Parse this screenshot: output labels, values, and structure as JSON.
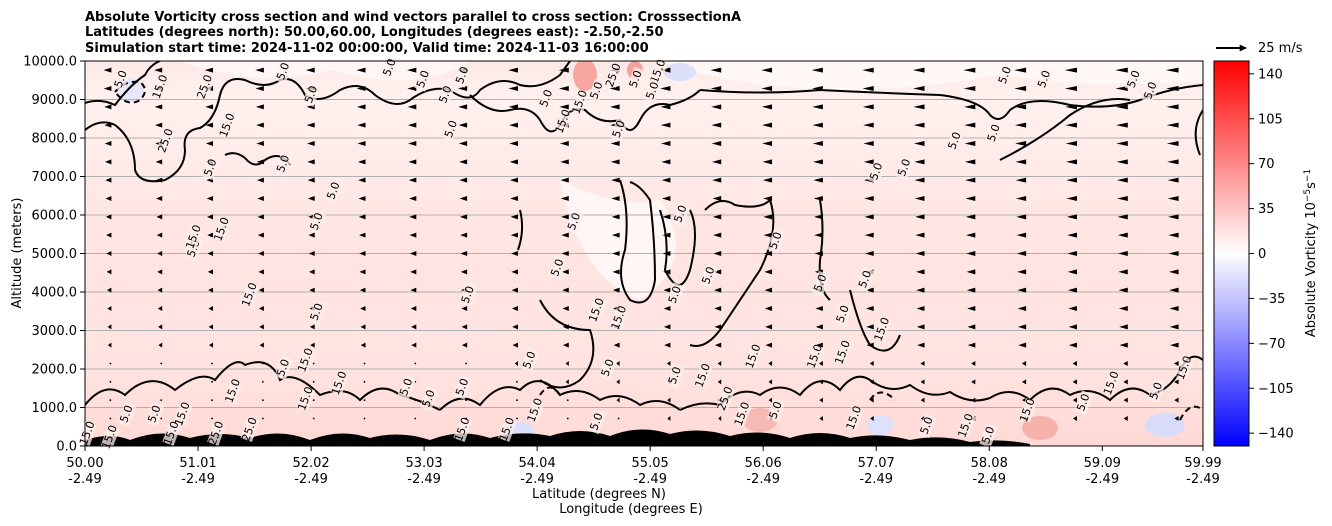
{
  "chart_data": {
    "type": "heatmap",
    "title_lines": [
      "Absolute Vorticity cross section and wind vectors parallel to cross section: CrosssectionA",
      "Latitudes (degrees north): 50.00,60.00, Longitudes (degrees east): -2.50,-2.50",
      "Simulation start time: 2024-11-02 00:00:00, Valid time: 2024-11-03 16:00:00"
    ],
    "ylabel": "Altitude (meters)",
    "xlabel_lines": [
      "Latitude (degrees N)",
      "Longitude (degrees E)"
    ],
    "ylim": [
      0,
      10000
    ],
    "y_ticks": [
      0,
      1000,
      2000,
      3000,
      4000,
      5000,
      6000,
      7000,
      8000,
      9000,
      10000
    ],
    "y_tick_labels": [
      "0.0",
      "1000.0",
      "2000.0",
      "3000.0",
      "4000.0",
      "5000.0",
      "6000.0",
      "7000.0",
      "8000.0",
      "9000.0",
      "10000.0"
    ],
    "x_ticks": [
      {
        "lat": "50.00",
        "lon": "-2.49"
      },
      {
        "lat": "51.01",
        "lon": "-2.49"
      },
      {
        "lat": "52.02",
        "lon": "-2.49"
      },
      {
        "lat": "53.03",
        "lon": "-2.49"
      },
      {
        "lat": "54.04",
        "lon": "-2.49"
      },
      {
        "lat": "55.05",
        "lon": "-2.49"
      },
      {
        "lat": "56.06",
        "lon": "-2.49"
      },
      {
        "lat": "57.07",
        "lon": "-2.49"
      },
      {
        "lat": "58.08",
        "lon": "-2.49"
      },
      {
        "lat": "59.09",
        "lon": "-2.49"
      },
      {
        "lat": "59.99",
        "lon": "-2.49"
      }
    ],
    "grid": "horizontal",
    "colorbar": {
      "label_main": "Absolute Vorticity 10",
      "label_exp1": "−5",
      "label_mid": "s",
      "label_exp2": "−1",
      "range": [
        -150,
        150
      ],
      "ticks": [
        140,
        105,
        70,
        35,
        0,
        -35,
        -70,
        -105,
        -140
      ],
      "tick_labels": [
        "140",
        "105",
        "70",
        "35",
        "0",
        "−35",
        "−70",
        "−105",
        "−140"
      ],
      "colormap": "bwr"
    },
    "quiver_key": {
      "label": "25 m/s",
      "value": 25
    },
    "contour_levels": [
      "5.0",
      "15.0",
      "25.0"
    ],
    "contour_labels": [
      {
        "text": "5.0",
        "lat": 50.35,
        "alt": 9500
      },
      {
        "text": "15.0",
        "lat": 50.7,
        "alt": 9300
      },
      {
        "text": "25.0",
        "lat": 51.1,
        "alt": 9300
      },
      {
        "text": "25.0",
        "lat": 50.75,
        "alt": 7900
      },
      {
        "text": "15.0",
        "lat": 51.3,
        "alt": 8300
      },
      {
        "text": "5.0",
        "lat": 51.15,
        "alt": 7200
      },
      {
        "text": "5.0",
        "lat": 51.8,
        "alt": 7300
      },
      {
        "text": "5.0",
        "lat": 51.8,
        "alt": 9700
      },
      {
        "text": "5.0",
        "lat": 52.05,
        "alt": 9100
      },
      {
        "text": "5.0",
        "lat": 52.25,
        "alt": 6600
      },
      {
        "text": "5.0",
        "lat": 52.75,
        "alt": 9800
      },
      {
        "text": "5.0",
        "lat": 53.05,
        "alt": 9500
      },
      {
        "text": "5.0",
        "lat": 53.25,
        "alt": 9100
      },
      {
        "text": "5.0",
        "lat": 53.4,
        "alt": 9600
      },
      {
        "text": "5.0",
        "lat": 53.3,
        "alt": 8200
      },
      {
        "text": "5.0",
        "lat": 54.15,
        "alt": 9000
      },
      {
        "text": "15.0",
        "lat": 54.3,
        "alt": 8400
      },
      {
        "text": "15.0",
        "lat": 54.45,
        "alt": 8900
      },
      {
        "text": "5.0",
        "lat": 54.6,
        "alt": 9200
      },
      {
        "text": "25.0",
        "lat": 54.75,
        "alt": 9600
      },
      {
        "text": "5.0",
        "lat": 54.95,
        "alt": 9500
      },
      {
        "text": "15.0",
        "lat": 55.15,
        "alt": 9700
      },
      {
        "text": "5.0",
        "lat": 54.8,
        "alt": 8200
      },
      {
        "text": "5.0",
        "lat": 55.1,
        "alt": 9200
      },
      {
        "text": "5.0",
        "lat": 58.25,
        "alt": 9600
      },
      {
        "text": "5.0",
        "lat": 58.6,
        "alt": 9500
      },
      {
        "text": "5.0",
        "lat": 59.4,
        "alt": 9500
      },
      {
        "text": "5.0",
        "lat": 59.55,
        "alt": 9200
      },
      {
        "text": "5.0",
        "lat": 57.8,
        "alt": 7900
      },
      {
        "text": "5.0",
        "lat": 58.15,
        "alt": 8100
      },
      {
        "text": "5.0",
        "lat": 57.1,
        "alt": 7100
      },
      {
        "text": "5.0",
        "lat": 57.35,
        "alt": 7200
      },
      {
        "text": "15.0",
        "lat": 51.25,
        "alt": 5600
      },
      {
        "text": "5.0",
        "lat": 51.0,
        "alt": 5100
      },
      {
        "text": "15.0",
        "lat": 51.0,
        "alt": 5400
      },
      {
        "text": "5.0",
        "lat": 52.1,
        "alt": 5800
      },
      {
        "text": "5.0",
        "lat": 54.4,
        "alt": 5800
      },
      {
        "text": "5.0",
        "lat": 55.35,
        "alt": 6000
      },
      {
        "text": "5.0",
        "lat": 56.2,
        "alt": 5300
      },
      {
        "text": "5.0",
        "lat": 55.6,
        "alt": 4400
      },
      {
        "text": "5.0",
        "lat": 54.25,
        "alt": 4600
      },
      {
        "text": "5.0",
        "lat": 56.6,
        "alt": 4200
      },
      {
        "text": "5.0",
        "lat": 57.0,
        "alt": 4300
      },
      {
        "text": "15.0",
        "lat": 51.5,
        "alt": 3900
      },
      {
        "text": "5.0",
        "lat": 53.45,
        "alt": 3900
      },
      {
        "text": "5.0",
        "lat": 52.1,
        "alt": 3450
      },
      {
        "text": "15.0",
        "lat": 54.6,
        "alt": 3500
      },
      {
        "text": "15.0",
        "lat": 54.8,
        "alt": 3300
      },
      {
        "text": "5.0",
        "lat": 55.3,
        "alt": 3900
      },
      {
        "text": "5.0",
        "lat": 56.8,
        "alt": 3400
      },
      {
        "text": "15.0",
        "lat": 56.0,
        "alt": 2300
      },
      {
        "text": "15.0",
        "lat": 56.55,
        "alt": 2300
      },
      {
        "text": "15.0",
        "lat": 56.8,
        "alt": 2400
      },
      {
        "text": "15.0",
        "lat": 57.15,
        "alt": 3000
      },
      {
        "text": "5.0",
        "lat": 54.0,
        "alt": 2200
      },
      {
        "text": "5.0",
        "lat": 53.4,
        "alt": 1500
      },
      {
        "text": "5.0",
        "lat": 54.7,
        "alt": 2000
      },
      {
        "text": "5.0",
        "lat": 55.3,
        "alt": 1800
      },
      {
        "text": "15.0",
        "lat": 55.55,
        "alt": 1800
      },
      {
        "text": "15.0",
        "lat": 52.0,
        "alt": 2200
      },
      {
        "text": "5.0",
        "lat": 51.8,
        "alt": 2000
      },
      {
        "text": "15.0",
        "lat": 52.3,
        "alt": 1600
      },
      {
        "text": "15.0",
        "lat": 52.0,
        "alt": 1200
      },
      {
        "text": "5.0",
        "lat": 52.9,
        "alt": 1500
      },
      {
        "text": "5.0",
        "lat": 53.1,
        "alt": 1200
      },
      {
        "text": "15.0",
        "lat": 51.35,
        "alt": 1400
      },
      {
        "text": "15.0",
        "lat": 59.85,
        "alt": 2000
      },
      {
        "text": "15.0",
        "lat": 59.2,
        "alt": 1600
      },
      {
        "text": "5.0",
        "lat": 59.6,
        "alt": 1400
      },
      {
        "text": "15.0",
        "lat": 58.45,
        "alt": 900
      },
      {
        "text": "5.0",
        "lat": 58.95,
        "alt": 1100
      },
      {
        "text": "5.0",
        "lat": 58.1,
        "alt": 250
      },
      {
        "text": "15.0",
        "lat": 57.9,
        "alt": 500
      },
      {
        "text": "5.0",
        "lat": 57.55,
        "alt": 500
      },
      {
        "text": "15.0",
        "lat": 56.9,
        "alt": 700
      },
      {
        "text": "5.0",
        "lat": 56.2,
        "alt": 900
      },
      {
        "text": "25.0",
        "lat": 55.75,
        "alt": 1200
      },
      {
        "text": "15.0",
        "lat": 55.9,
        "alt": 800
      },
      {
        "text": "5.0",
        "lat": 54.6,
        "alt": 600
      },
      {
        "text": "15.0",
        "lat": 54.05,
        "alt": 900
      },
      {
        "text": "15.0",
        "lat": 53.8,
        "alt": 400
      },
      {
        "text": "15.0",
        "lat": 53.4,
        "alt": 400
      },
      {
        "text": "15.0",
        "lat": 50.25,
        "alt": 200
      },
      {
        "text": "5.0",
        "lat": 50.4,
        "alt": 800
      },
      {
        "text": "5.0",
        "lat": 50.65,
        "alt": 800
      },
      {
        "text": "15.0",
        "lat": 50.9,
        "alt": 800
      },
      {
        "text": "15.0",
        "lat": 50.8,
        "alt": 300
      },
      {
        "text": "25.0",
        "lat": 51.2,
        "alt": 300
      },
      {
        "text": "15.0",
        "lat": 50.05,
        "alt": 300
      },
      {
        "text": "25.0",
        "lat": 51.5,
        "alt": 400
      }
    ]
  }
}
